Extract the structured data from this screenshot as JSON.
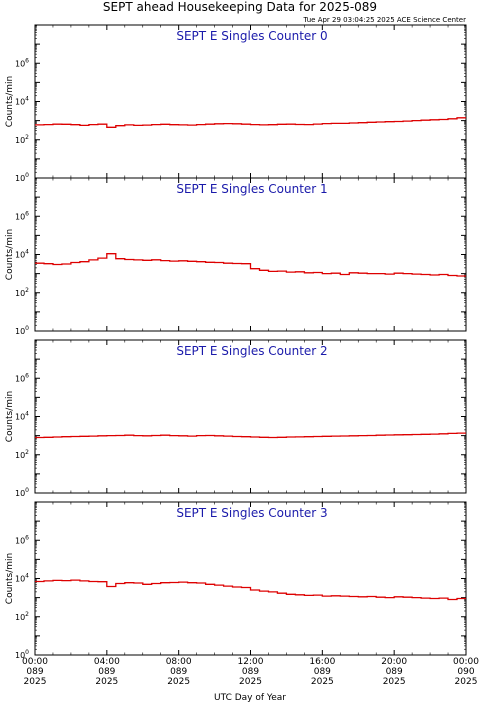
{
  "header": {
    "title": "SEPT ahead Housekeeping Data for 2025-089",
    "timestamp": "Tue Apr 29 03:04:25 2025 ACE Science Center"
  },
  "colors": {
    "series": "#dd0000",
    "panel_title": "#1a1aaa",
    "axes": "#000000"
  },
  "chart_data": [
    {
      "type": "line",
      "title": "SEPT E Singles Counter 0",
      "ylabel": "Counts/min",
      "yscale": "log",
      "ylim": [
        1,
        100000000
      ],
      "y_ticks": [
        {
          "base": "10",
          "exp": "0"
        },
        {
          "base": "10",
          "exp": "2"
        },
        {
          "base": "10",
          "exp": "4"
        },
        {
          "base": "10",
          "exp": "6"
        }
      ],
      "x": [
        0,
        0.5,
        1,
        1.5,
        2,
        2.5,
        3,
        3.5,
        4,
        4.5,
        5,
        5.5,
        6,
        6.5,
        7,
        7.5,
        8,
        8.5,
        9,
        9.5,
        10,
        10.5,
        11,
        11.5,
        12,
        12.5,
        13,
        13.5,
        14,
        14.5,
        15,
        15.5,
        16,
        16.5,
        17,
        17.5,
        18,
        18.5,
        19,
        19.5,
        20,
        20.5,
        21,
        21.5,
        22,
        22.5,
        23,
        23.5
      ],
      "values": [
        600,
        620,
        650,
        640,
        610,
        560,
        620,
        650,
        450,
        540,
        600,
        560,
        580,
        620,
        640,
        610,
        600,
        580,
        620,
        650,
        680,
        700,
        680,
        650,
        620,
        600,
        610,
        640,
        650,
        630,
        620,
        660,
        700,
        720,
        720,
        750,
        780,
        820,
        850,
        880,
        900,
        950,
        1000,
        1050,
        1100,
        1150,
        1250,
        1400
      ]
    },
    {
      "type": "line",
      "title": "SEPT E Singles Counter 1",
      "ylabel": "Counts/min",
      "yscale": "log",
      "ylim": [
        1,
        100000000
      ],
      "y_ticks": [
        {
          "base": "10",
          "exp": "0"
        },
        {
          "base": "10",
          "exp": "2"
        },
        {
          "base": "10",
          "exp": "4"
        },
        {
          "base": "10",
          "exp": "6"
        }
      ],
      "x": [
        0,
        0.5,
        1,
        1.5,
        2,
        2.5,
        3,
        3.5,
        4,
        4.5,
        5,
        5.5,
        6,
        6.5,
        7,
        7.5,
        8,
        8.5,
        9,
        9.5,
        10,
        10.5,
        11,
        11.5,
        12,
        12.5,
        13,
        13.5,
        14,
        14.5,
        15,
        15.5,
        16,
        16.5,
        17,
        17.5,
        18,
        18.5,
        19,
        19.5,
        20,
        20.5,
        21,
        21.5,
        22,
        22.5,
        23,
        23.5
      ],
      "values": [
        3500,
        3300,
        3000,
        3200,
        3800,
        4200,
        5200,
        6500,
        11000,
        6000,
        5500,
        5200,
        5000,
        5300,
        4800,
        4500,
        4700,
        4400,
        4200,
        3900,
        3800,
        3500,
        3400,
        3300,
        1800,
        1500,
        1300,
        1350,
        1200,
        1250,
        1100,
        1150,
        1000,
        1050,
        900,
        1100,
        1050,
        1000,
        1000,
        950,
        1050,
        1000,
        950,
        900,
        850,
        900,
        800,
        750
      ]
    },
    {
      "type": "line",
      "title": "SEPT E Singles Counter 2",
      "ylabel": "Counts/min",
      "yscale": "log",
      "ylim": [
        1,
        100000000
      ],
      "y_ticks": [
        {
          "base": "10",
          "exp": "0"
        },
        {
          "base": "10",
          "exp": "2"
        },
        {
          "base": "10",
          "exp": "4"
        },
        {
          "base": "10",
          "exp": "6"
        }
      ],
      "x": [
        0,
        0.5,
        1,
        1.5,
        2,
        2.5,
        3,
        3.5,
        4,
        4.5,
        5,
        5.5,
        6,
        6.5,
        7,
        7.5,
        8,
        8.5,
        9,
        9.5,
        10,
        10.5,
        11,
        11.5,
        12,
        12.5,
        13,
        13.5,
        14,
        14.5,
        15,
        15.5,
        16,
        16.5,
        17,
        17.5,
        18,
        18.5,
        19,
        19.5,
        20,
        20.5,
        21,
        21.5,
        22,
        22.5,
        23,
        23.5
      ],
      "values": [
        800,
        820,
        850,
        880,
        900,
        920,
        950,
        980,
        1000,
        1020,
        1050,
        1000,
        980,
        1020,
        1050,
        1000,
        980,
        950,
        1000,
        1020,
        980,
        950,
        900,
        880,
        850,
        820,
        800,
        820,
        850,
        860,
        880,
        900,
        920,
        950,
        960,
        980,
        1000,
        1020,
        1050,
        1080,
        1100,
        1120,
        1150,
        1180,
        1200,
        1250,
        1300,
        1350
      ]
    },
    {
      "type": "line",
      "title": "SEPT E Singles Counter 3",
      "ylabel": "Counts/min",
      "yscale": "log",
      "ylim": [
        1,
        100000000
      ],
      "y_ticks": [
        {
          "base": "10",
          "exp": "0"
        },
        {
          "base": "10",
          "exp": "2"
        },
        {
          "base": "10",
          "exp": "4"
        },
        {
          "base": "10",
          "exp": "6"
        }
      ],
      "x": [
        0,
        0.5,
        1,
        1.5,
        2,
        2.5,
        3,
        3.5,
        4,
        4.5,
        5,
        5.5,
        6,
        6.5,
        7,
        7.5,
        8,
        8.5,
        9,
        9.5,
        10,
        10.5,
        11,
        11.5,
        12,
        12.5,
        13,
        13.5,
        14,
        14.5,
        15,
        15.5,
        16,
        16.5,
        17,
        17.5,
        18,
        18.5,
        19,
        19.5,
        20,
        20.5,
        21,
        21.5,
        22,
        22.5,
        23,
        23.5
      ],
      "values": [
        7000,
        7500,
        8000,
        7800,
        8200,
        7500,
        7000,
        6800,
        3800,
        5500,
        6000,
        5800,
        5000,
        5500,
        6000,
        6200,
        6500,
        6000,
        5800,
        5000,
        4500,
        4000,
        3600,
        3400,
        2500,
        2200,
        2000,
        1700,
        1500,
        1400,
        1300,
        1350,
        1200,
        1250,
        1200,
        1150,
        1100,
        1150,
        1050,
        1000,
        1100,
        1050,
        1000,
        950,
        900,
        950,
        800,
        900
      ]
    }
  ],
  "x_axis": {
    "title": "UTC Day of Year",
    "ticks": [
      {
        "time": "00:00",
        "day": "089",
        "year": "2025"
      },
      {
        "time": "04:00",
        "day": "089",
        "year": "2025"
      },
      {
        "time": "08:00",
        "day": "089",
        "year": "2025"
      },
      {
        "time": "12:00",
        "day": "089",
        "year": "2025"
      },
      {
        "time": "16:00",
        "day": "089",
        "year": "2025"
      },
      {
        "time": "20:00",
        "day": "089",
        "year": "2025"
      },
      {
        "time": "00:00",
        "day": "090",
        "year": "2025"
      }
    ]
  }
}
